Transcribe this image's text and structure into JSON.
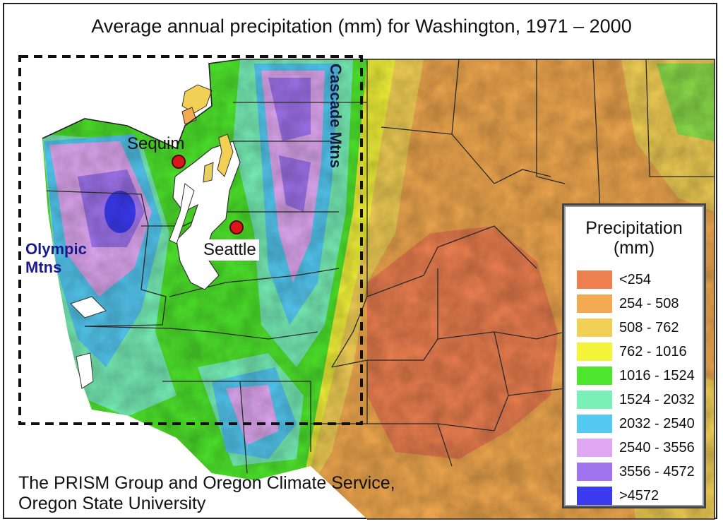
{
  "title": "Average annual precipitation (mm) for Washington, 1971 – 2000",
  "labels": {
    "sequim": "Sequim",
    "seattle": "Seattle",
    "olympic_line1": "Olympic",
    "olympic_line2": "Mtns",
    "cascade": "Cascade Mtns"
  },
  "credit": {
    "line1": "The PRISM Group and Oregon Climate Service,",
    "line2": "Oregon State University"
  },
  "legend": {
    "title_line1": "Precipitation",
    "title_line2": "(mm)",
    "items": [
      {
        "label": "<254",
        "color": "#ee8050"
      },
      {
        "label": "254 - 508",
        "color": "#f2a94f"
      },
      {
        "label": "508 - 762",
        "color": "#f2cf55"
      },
      {
        "label": "762 - 1016",
        "color": "#f4f43a"
      },
      {
        "label": "1016 - 1524",
        "color": "#4ee62c"
      },
      {
        "label": "1524 - 2032",
        "color": "#78f0b8"
      },
      {
        "label": "2032 - 2540",
        "color": "#54c9f2"
      },
      {
        "label": "2540 - 3556",
        "color": "#e0a8f2"
      },
      {
        "label": "3556 - 4572",
        "color": "#a074ee"
      },
      {
        "label": ">4572",
        "color": "#3a3af0"
      }
    ]
  }
}
